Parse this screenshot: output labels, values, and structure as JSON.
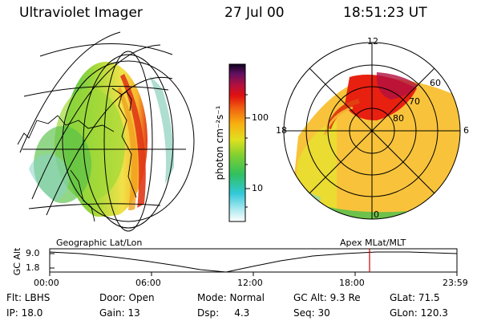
{
  "header": {
    "instrument": "Ultraviolet Imager",
    "date": "27 Jul 00",
    "time": "18:51:23 UT"
  },
  "colorbar": {
    "unit_label": "photon cm⁻²s⁻¹",
    "tick_100": "100",
    "tick_10": "10"
  },
  "left_panel": {
    "caption": "Geographic Lat/Lon"
  },
  "right_panel": {
    "caption": "Apex MLat/MLT",
    "mlt_labels": {
      "top": "12",
      "left": "18",
      "right": "6",
      "bottom": "0"
    },
    "lat_labels": {
      "l60": "60",
      "l70": "70",
      "l80": "80"
    }
  },
  "altitude_plot": {
    "ylabel": "GC Alt",
    "ytick_top": "9.0",
    "ytick_bottom": "1.8",
    "time_ticks": [
      "00:00",
      "06:00",
      "12:00",
      "18:00",
      "23:59"
    ],
    "marker_color": "#cc0000"
  },
  "info": {
    "flt": "Flt: LBHS",
    "door": "Door: Open",
    "mode": "Mode: Normal",
    "gcalt": "GC Alt: 9.3 Re",
    "glat": "GLat:  71.5",
    "ip": "IP: 18.0",
    "gain": "Gain: 13",
    "dsp": "Dsp:     4.3",
    "seq": "Seq: 30",
    "glon": "GLon: 120.3"
  }
}
